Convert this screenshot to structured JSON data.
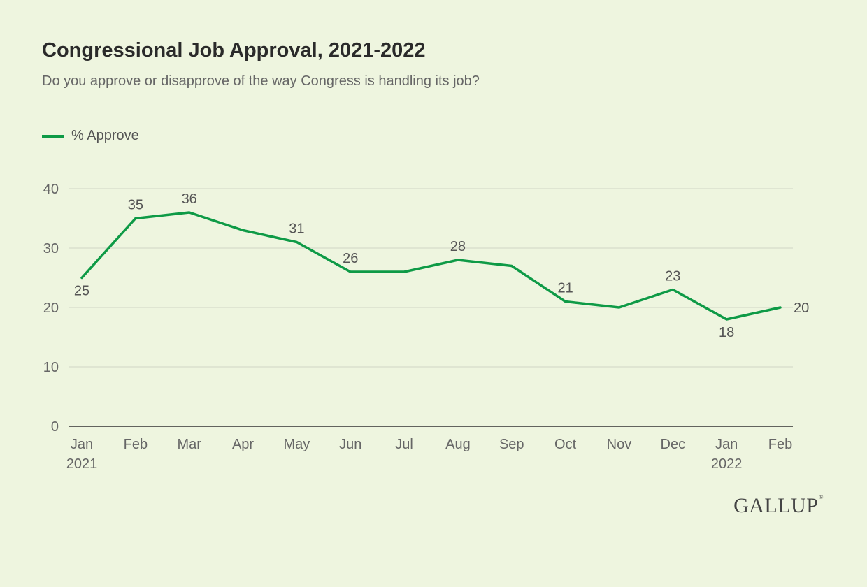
{
  "header": {
    "title": "Congressional Job Approval, 2021-2022",
    "subtitle": "Do you approve or disapprove of the way Congress is handling its job?"
  },
  "logo": {
    "text": "GALLUP"
  },
  "chart_data": {
    "type": "line",
    "title": "Congressional Job Approval, 2021-2022",
    "subtitle": "Do you approve or disapprove of the way Congress is handling its job?",
    "x": [
      "Jan",
      "Feb",
      "Mar",
      "Apr",
      "May",
      "Jun",
      "Jul",
      "Aug",
      "Sep",
      "Oct",
      "Nov",
      "Dec",
      "Jan",
      "Feb"
    ],
    "x_sublabels": [
      "2021",
      "",
      "",
      "",
      "",
      "",
      "",
      "",
      "",
      "",
      "",
      "",
      "2022",
      ""
    ],
    "series": [
      {
        "name": "% Approve",
        "color": "#0e9a46",
        "values": [
          25,
          35,
          36,
          33,
          31,
          26,
          26,
          28,
          27,
          21,
          20,
          23,
          18,
          20
        ],
        "labeled": [
          true,
          true,
          true,
          false,
          true,
          true,
          false,
          true,
          false,
          true,
          false,
          true,
          true,
          true
        ],
        "label_position": [
          "below",
          "above",
          "above",
          "above",
          "above",
          "above",
          "above",
          "above",
          "above",
          "above",
          "above",
          "above",
          "below",
          "right"
        ]
      }
    ],
    "ylim": [
      0,
      40
    ],
    "yticks": [
      0,
      10,
      20,
      30,
      40
    ],
    "grid": true,
    "legend": "top-left",
    "xlabel": "",
    "ylabel": ""
  }
}
